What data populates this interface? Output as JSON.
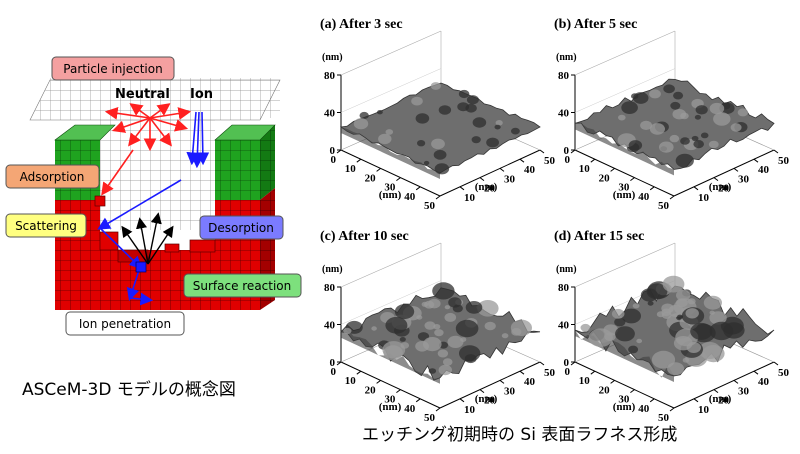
{
  "left": {
    "title": "ASCeM-3D モデルの概念図",
    "labels": {
      "particle_injection": "Particle injection",
      "neutral": "Neutral",
      "ion": "Ion",
      "adsorption": "Adsorption",
      "scattering": "Scattering",
      "desorption": "Desorption",
      "surface_reaction": "Surface reaction",
      "ion_penetration": "Ion penetration"
    },
    "colors": {
      "mask": "#1fa31f",
      "silicon": "#e00000",
      "void": "#ffffff",
      "neutral_arrow": "#ff2020",
      "ion_arrow": "#1a1aff",
      "reaction_arrow": "#000000"
    }
  },
  "right": {
    "caption": "エッチング初期時の Si 表面ラフネス形成",
    "panels": [
      {
        "title": "(a) After 3 sec",
        "roughness": 0.25
      },
      {
        "title": "(b) After 5 sec",
        "roughness": 0.55
      },
      {
        "title": "(c) After 10 sec",
        "roughness": 0.85
      },
      {
        "title": "(d) After 15 sec",
        "roughness": 1.0
      }
    ],
    "axes": {
      "z_unit": "(nm)",
      "z_ticks": [
        "0",
        "40",
        "80"
      ],
      "x_unit": "(nm)",
      "x_ticks": [
        "0",
        "10",
        "20",
        "30",
        "40",
        "50"
      ],
      "y_unit": "(nm)",
      "y_ticks": [
        "10",
        "20",
        "30",
        "40",
        "50"
      ]
    }
  }
}
